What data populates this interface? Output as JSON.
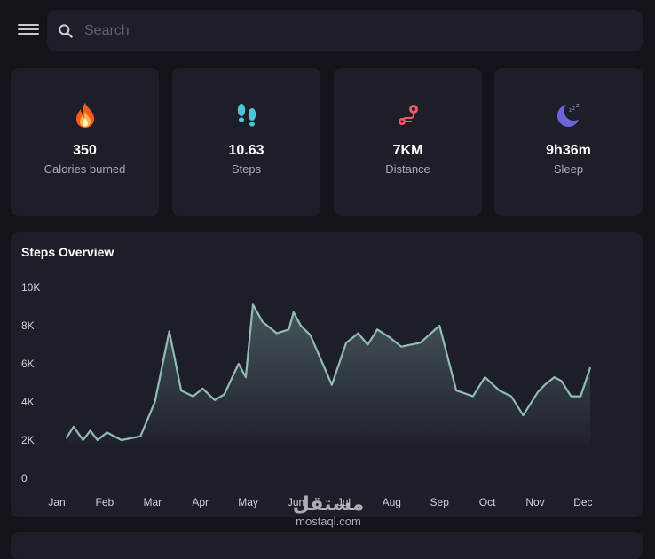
{
  "search": {
    "placeholder": "Search"
  },
  "cards": [
    {
      "value": "350",
      "label": "Calories burned",
      "icon": "fire-icon"
    },
    {
      "value": "10.63",
      "label": "Steps",
      "icon": "footprints-icon"
    },
    {
      "value": "7KM",
      "label": "Distance",
      "icon": "route-icon"
    },
    {
      "value": "9h36m",
      "label": "Sleep",
      "icon": "moon-sleep-icon"
    }
  ],
  "colors": {
    "background": "#13131a",
    "panel": "#1e1e29",
    "line": "#8fbdb5",
    "fire": "#ff6a2b",
    "steps": "#4fc3d9",
    "distance": "#f05a63",
    "sleep": "#6c63d9"
  },
  "watermark": {
    "arabic": "مستقل",
    "latin": "mostaql.com"
  },
  "chart_data": {
    "type": "area",
    "title": "Steps Overview",
    "ylim": [
      0,
      10000
    ],
    "yticks": [
      "0",
      "2K",
      "4K",
      "6K",
      "8K",
      "10K"
    ],
    "xticks": [
      "Jan",
      "Feb",
      "Mar",
      "Apr",
      "May",
      "Jun",
      "Jul",
      "Aug",
      "Sep",
      "Oct",
      "Nov",
      "Dec"
    ],
    "x": [
      1.2,
      1.35,
      1.55,
      1.7,
      1.85,
      2.05,
      2.35,
      2.75,
      3.05,
      3.35,
      3.6,
      3.85,
      4.05,
      4.3,
      4.5,
      4.8,
      4.95,
      5.1,
      5.3,
      5.6,
      5.85,
      5.95,
      6.1,
      6.3,
      6.75,
      7.05,
      7.3,
      7.5,
      7.7,
      7.95,
      8.2,
      8.6,
      9.0,
      9.35,
      9.7,
      9.95,
      10.25,
      10.5,
      10.75,
      11.05,
      11.2,
      11.4,
      11.55,
      11.75,
      11.95,
      12.15
    ],
    "series": [
      {
        "values": [
          2100,
          2700,
          2000,
          2500,
          2000,
          2400,
          2000,
          2200,
          4000,
          7700,
          4600,
          4300,
          4700,
          4100,
          4400,
          6000,
          5300,
          9100,
          8200,
          7600,
          7800,
          8700,
          8000,
          7500,
          4900,
          7100,
          7600,
          7000,
          7800,
          7400,
          6900,
          7100,
          8000,
          4600,
          4300,
          5300,
          4600,
          4300,
          3300,
          4500,
          4900,
          5300,
          5100,
          4300,
          4300,
          5800
        ]
      }
    ]
  }
}
